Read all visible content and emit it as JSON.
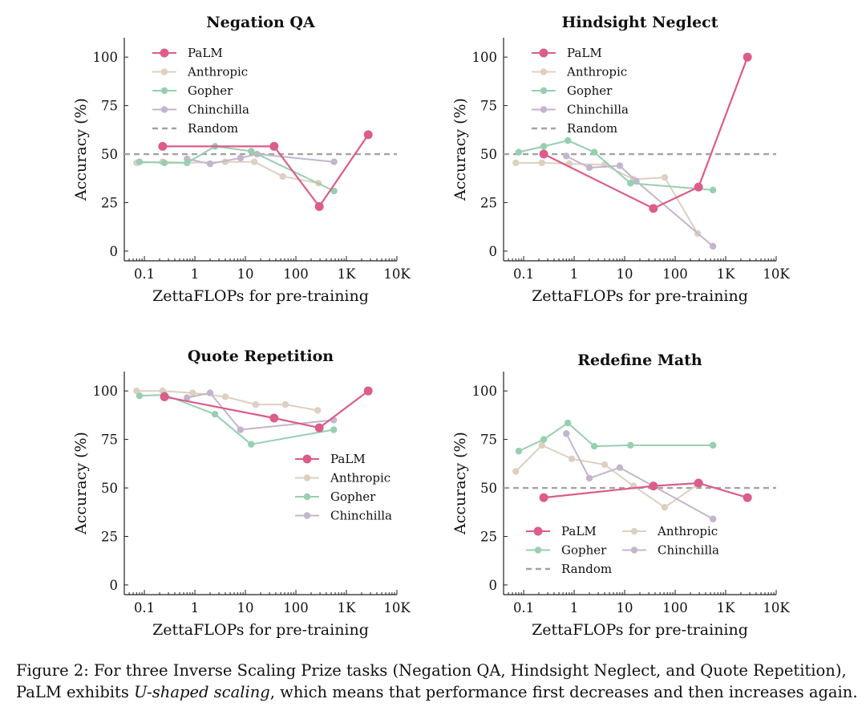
{
  "caption": {
    "part1": "Figure 2: For three Inverse Scaling Prize tasks (Negation QA, Hindsight Neglect, and Quote Repetition),",
    "part2": "PaLM exhibits ",
    "emph": "U-shaped scaling",
    "part3": ", which means that performance first decreases and then increases again."
  },
  "colors": {
    "PaLM": "#dc5c8a",
    "Anthropic": "#ddd0c2",
    "Gopher": "#97cfb0",
    "Chinchilla": "#c4b5cc",
    "Random": "#a3a3a3"
  },
  "chart_data": [
    {
      "type": "line",
      "title": "Negation QA",
      "xlabel": "ZettaFLOPs for pre-training",
      "ylabel": "Accuracy (%)",
      "xscale": "log",
      "xlim": [
        0.04,
        10000
      ],
      "ylim": [
        -5,
        110
      ],
      "xticks": [
        {
          "v": 0.1,
          "label": "0.1"
        },
        {
          "v": 1,
          "label": "1"
        },
        {
          "v": 10,
          "label": "10"
        },
        {
          "v": 100,
          "label": "100"
        },
        {
          "v": 1000,
          "label": "1K"
        },
        {
          "v": 10000,
          "label": "10K"
        }
      ],
      "yticks": [
        0,
        25,
        50,
        75,
        100
      ],
      "random": 50,
      "legend": {
        "position": "top-left",
        "columns": 1,
        "entries": [
          "PaLM",
          "Anthropic",
          "Gopher",
          "Chinchilla",
          "Random"
        ]
      },
      "series": [
        {
          "name": "Anthropic",
          "x": [
            0.07,
            0.23,
            0.7,
            4,
            15,
            55,
            280
          ],
          "y": [
            45.5,
            46,
            45.5,
            46,
            46,
            38.5,
            35
          ]
        },
        {
          "name": "Chinchilla",
          "x": [
            0.7,
            2,
            8,
            17,
            570
          ],
          "y": [
            47.5,
            45,
            48,
            50,
            46
          ]
        },
        {
          "name": "Gopher",
          "x": [
            0.08,
            0.25,
            0.7,
            2.5,
            13,
            570
          ],
          "y": [
            46,
            45.5,
            45.5,
            54,
            51.5,
            31
          ]
        },
        {
          "name": "PaLM",
          "x": [
            0.23,
            37,
            290,
            2700
          ],
          "y": [
            54,
            54,
            23,
            60
          ]
        }
      ]
    },
    {
      "type": "line",
      "title": "Hindsight Neglect",
      "xlabel": "ZettaFLOPs for pre-training",
      "ylabel": "Accuracy (%)",
      "xscale": "log",
      "xlim": [
        0.04,
        10000
      ],
      "ylim": [
        -5,
        110
      ],
      "xticks": [
        {
          "v": 0.1,
          "label": "0.1"
        },
        {
          "v": 1,
          "label": "1"
        },
        {
          "v": 10,
          "label": "10"
        },
        {
          "v": 100,
          "label": "100"
        },
        {
          "v": 1000,
          "label": "1K"
        },
        {
          "v": 10000,
          "label": "10K"
        }
      ],
      "yticks": [
        0,
        25,
        50,
        75,
        100
      ],
      "random": 50,
      "legend": {
        "position": "top-left",
        "columns": 1,
        "entries": [
          "PaLM",
          "Anthropic",
          "Gopher",
          "Chinchilla",
          "Random"
        ]
      },
      "series": [
        {
          "name": "Anthropic",
          "x": [
            0.07,
            0.23,
            0.8,
            4,
            15,
            62,
            280
          ],
          "y": [
            45.5,
            45.5,
            45,
            44.5,
            37,
            38,
            9
          ]
        },
        {
          "name": "Chinchilla",
          "x": [
            0.7,
            2,
            8,
            17,
            560
          ],
          "y": [
            49,
            43,
            44,
            36,
            2.5
          ]
        },
        {
          "name": "Gopher",
          "x": [
            0.08,
            0.25,
            0.75,
            2.5,
            13,
            560
          ],
          "y": [
            51,
            54,
            57,
            51,
            35,
            31.5
          ]
        },
        {
          "name": "PaLM",
          "x": [
            0.25,
            37,
            290,
            2700
          ],
          "y": [
            50,
            22,
            33,
            100
          ]
        }
      ]
    },
    {
      "type": "line",
      "title": "Quote Repetition",
      "xlabel": "ZettaFLOPs for pre-training",
      "ylabel": "Accuracy (%)",
      "xscale": "log",
      "xlim": [
        0.04,
        10000
      ],
      "ylim": [
        -5,
        110
      ],
      "xticks": [
        {
          "v": 0.1,
          "label": "0.1"
        },
        {
          "v": 1,
          "label": "1"
        },
        {
          "v": 10,
          "label": "10"
        },
        {
          "v": 100,
          "label": "100"
        },
        {
          "v": 1000,
          "label": "1K"
        },
        {
          "v": 10000,
          "label": "10K"
        }
      ],
      "yticks": [
        0,
        25,
        50,
        75,
        100
      ],
      "random": null,
      "legend": {
        "position": "center-right",
        "columns": 1,
        "entries": [
          "PaLM",
          "Anthropic",
          "Gopher",
          "Chinchilla"
        ]
      },
      "series": [
        {
          "name": "Anthropic",
          "x": [
            0.07,
            0.23,
            0.9,
            4,
            16,
            62,
            270
          ],
          "y": [
            100,
            100,
            99,
            97,
            93,
            93,
            90
          ]
        },
        {
          "name": "Chinchilla",
          "x": [
            0.7,
            2,
            8,
            560
          ],
          "y": [
            96.5,
            99,
            80,
            85
          ]
        },
        {
          "name": "Gopher",
          "x": [
            0.08,
            0.25,
            2.5,
            13,
            560
          ],
          "y": [
            97.5,
            98,
            88,
            72.5,
            80
          ]
        },
        {
          "name": "PaLM",
          "x": [
            0.25,
            37,
            290,
            2700
          ],
          "y": [
            97,
            86,
            81,
            100
          ]
        }
      ]
    },
    {
      "type": "line",
      "title": "Redefine Math",
      "xlabel": "ZettaFLOPs for pre-training",
      "ylabel": "Accuracy (%)",
      "xscale": "log",
      "xlim": [
        0.04,
        10000
      ],
      "ylim": [
        -5,
        110
      ],
      "xticks": [
        {
          "v": 0.1,
          "label": "0.1"
        },
        {
          "v": 1,
          "label": "1"
        },
        {
          "v": 10,
          "label": "10"
        },
        {
          "v": 100,
          "label": "100"
        },
        {
          "v": 1000,
          "label": "1K"
        },
        {
          "v": 10000,
          "label": "10K"
        }
      ],
      "yticks": [
        0,
        25,
        50,
        75,
        100
      ],
      "random": 50,
      "legend": {
        "position": "bottom-left",
        "columns": 2,
        "entries": [
          "PaLM",
          "Anthropic",
          "Gopher",
          "Chinchilla",
          "Random"
        ]
      },
      "series": [
        {
          "name": "Anthropic",
          "x": [
            0.07,
            0.23,
            0.9,
            4,
            15,
            62,
            270
          ],
          "y": [
            58.5,
            72,
            65,
            62,
            51,
            40,
            51.5
          ]
        },
        {
          "name": "Chinchilla",
          "x": [
            0.7,
            2,
            8,
            560
          ],
          "y": [
            78,
            55,
            60.5,
            34
          ]
        },
        {
          "name": "Gopher",
          "x": [
            0.08,
            0.25,
            0.75,
            2.5,
            13,
            560
          ],
          "y": [
            69,
            75,
            83.5,
            71.5,
            72,
            72
          ]
        },
        {
          "name": "PaLM",
          "x": [
            0.25,
            37,
            290,
            2700
          ],
          "y": [
            45,
            51,
            52.5,
            45
          ]
        }
      ]
    }
  ]
}
